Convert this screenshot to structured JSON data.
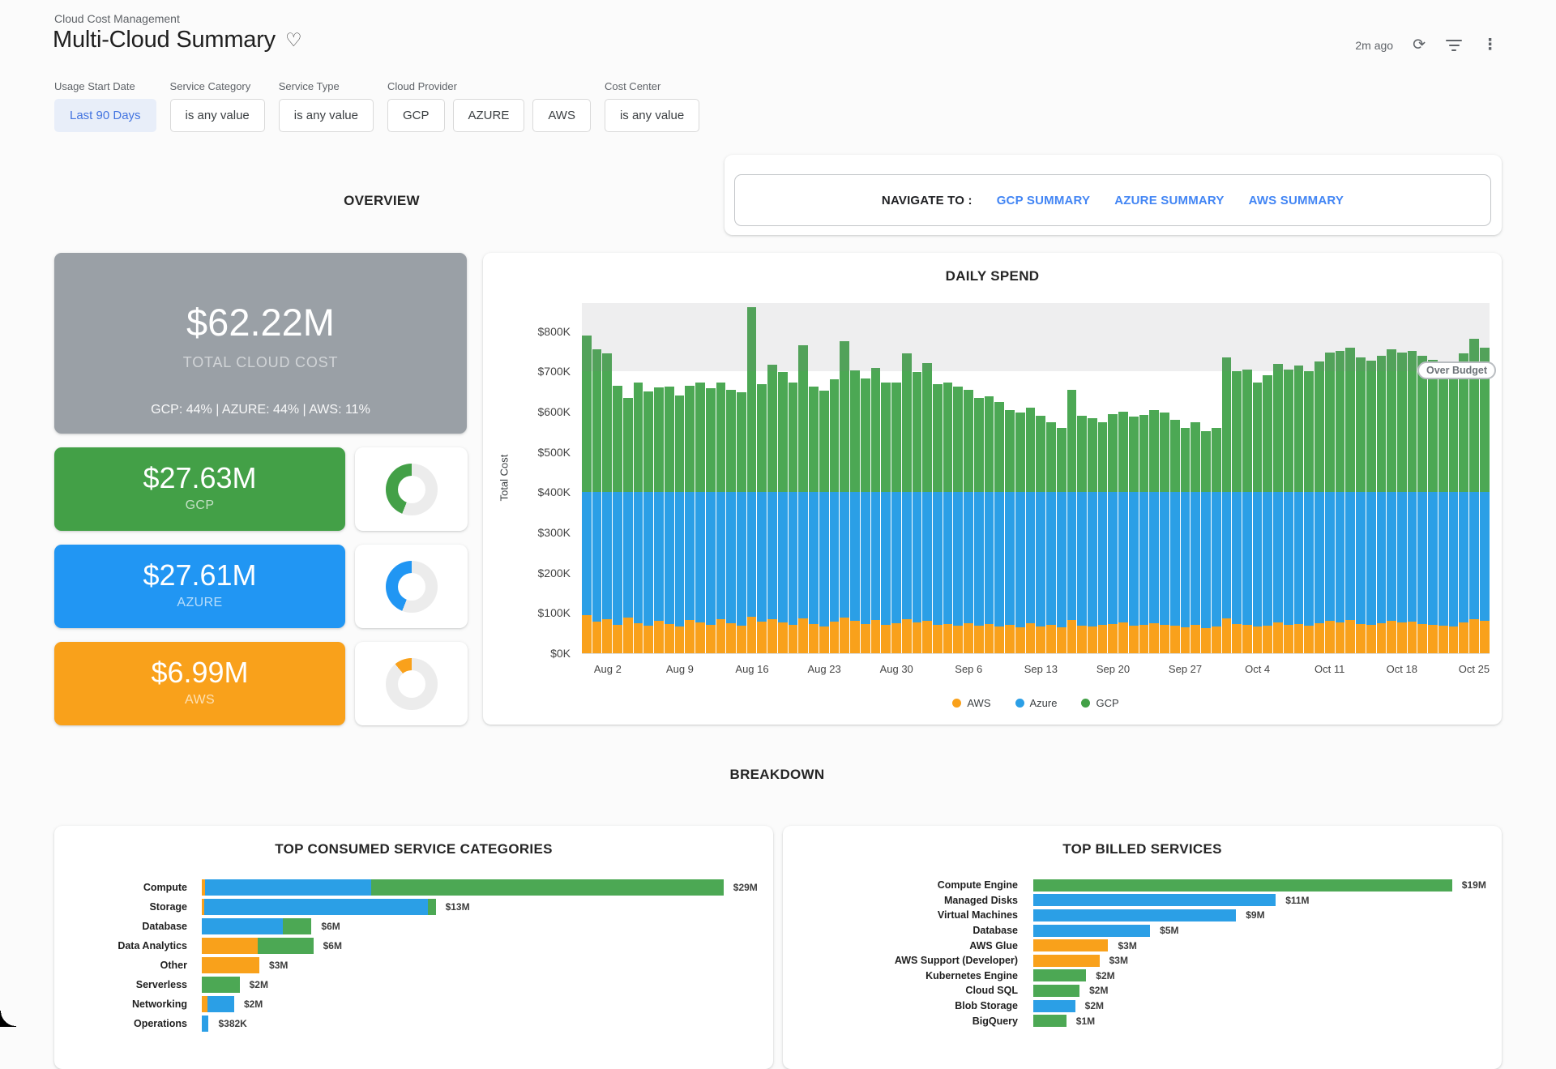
{
  "header": {
    "breadcrumb": "Cloud Cost Management",
    "title": "Multi-Cloud Summary",
    "updated": "2m ago"
  },
  "filters": [
    {
      "label": "Usage Start Date",
      "chips": [
        {
          "text": "Last 90 Days",
          "active": true
        }
      ]
    },
    {
      "label": "Service Category",
      "chips": [
        {
          "text": "is any value",
          "active": false
        }
      ]
    },
    {
      "label": "Service Type",
      "chips": [
        {
          "text": "is any value",
          "active": false
        }
      ]
    },
    {
      "label": "Cloud Provider",
      "chips": [
        {
          "text": "GCP",
          "active": false
        },
        {
          "text": "AZURE",
          "active": false
        },
        {
          "text": "AWS",
          "active": false
        }
      ]
    },
    {
      "label": "Cost Center",
      "chips": [
        {
          "text": "is any value",
          "active": false
        }
      ]
    }
  ],
  "sections": {
    "overview": "OVERVIEW",
    "breakdown": "BREAKDOWN"
  },
  "navigate": {
    "label": "NAVIGATE TO :",
    "links": [
      "GCP SUMMARY",
      "AZURE SUMMARY",
      "AWS SUMMARY"
    ]
  },
  "kpis": {
    "total": {
      "value": "$62.22M",
      "label": "TOTAL CLOUD COST",
      "split": "GCP: 44% | AZURE: 44% | AWS: 11%"
    },
    "providers": [
      {
        "value": "$27.63M",
        "label": "GCP",
        "pct": 44,
        "color_key": "gcp"
      },
      {
        "value": "$27.61M",
        "label": "AZURE",
        "pct": 44,
        "color_key": "azure"
      },
      {
        "value": "$6.99M",
        "label": "AWS",
        "pct": 11,
        "color_key": "aws"
      }
    ]
  },
  "colors": {
    "gcp": "#43a047",
    "azure": "#2196f3",
    "aws": "#f9a11b",
    "gcp_bar": "#4ca854",
    "azure_bar": "#2b9fe6",
    "aws_bar": "#f9a11b",
    "link": "#4285f4",
    "track": "#ececec",
    "gray_tile": "#9aa0a6"
  },
  "chart_data": [
    {
      "id": "daily_spend",
      "type": "bar",
      "stacked": true,
      "title": "DAILY SPEND",
      "ylabel": "Total Cost",
      "unit": "$K",
      "ylim": [
        0,
        870
      ],
      "grid": false,
      "ytick_values": [
        0,
        100,
        200,
        300,
        400,
        500,
        600,
        700,
        800
      ],
      "ytick_labels": [
        "$0K",
        "$100K",
        "$200K",
        "$300K",
        "$400K",
        "$500K",
        "$600K",
        "$700K",
        "$800K"
      ],
      "xticks": [
        {
          "label": "Aug 2",
          "i": 2
        },
        {
          "label": "Aug 9",
          "i": 9
        },
        {
          "label": "Aug 16",
          "i": 16
        },
        {
          "label": "Aug 23",
          "i": 23
        },
        {
          "label": "Aug 30",
          "i": 30
        },
        {
          "label": "Sep 6",
          "i": 37
        },
        {
          "label": "Sep 13",
          "i": 44
        },
        {
          "label": "Sep 20",
          "i": 51
        },
        {
          "label": "Sep 27",
          "i": 58
        },
        {
          "label": "Oct 4",
          "i": 65
        },
        {
          "label": "Oct 11",
          "i": 72
        },
        {
          "label": "Oct 18",
          "i": 79
        },
        {
          "label": "Oct 25",
          "i": 86
        }
      ],
      "legend": [
        "AWS",
        "Azure",
        "GCP"
      ],
      "legend_position": "bottom",
      "annotation": {
        "label": "Over Budget",
        "threshold": 700
      },
      "series": [
        {
          "name": "AWS",
          "color_key": "aws_bar",
          "values": [
            95,
            78,
            84,
            70,
            88,
            75,
            68,
            80,
            72,
            66,
            82,
            76,
            70,
            85,
            74,
            68,
            90,
            78,
            84,
            76,
            70,
            86,
            72,
            66,
            78,
            88,
            80,
            72,
            82,
            70,
            74,
            84,
            76,
            80,
            70,
            72,
            68,
            74,
            68,
            72,
            66,
            70,
            64,
            74,
            66,
            70,
            64,
            82,
            68,
            66,
            70,
            72,
            76,
            68,
            70,
            75,
            70,
            68,
            64,
            70,
            62,
            66,
            86,
            72,
            70,
            66,
            68,
            76,
            70,
            72,
            68,
            74,
            80,
            76,
            82,
            72,
            70,
            74,
            80,
            76,
            78,
            72,
            70,
            68,
            66,
            76,
            84,
            80
          ]
        },
        {
          "name": "Azure",
          "color_key": "azure_bar",
          "values": [
            305,
            322,
            316,
            330,
            312,
            325,
            332,
            320,
            328,
            334,
            318,
            324,
            330,
            315,
            326,
            332,
            310,
            322,
            316,
            324,
            330,
            314,
            328,
            334,
            322,
            312,
            320,
            328,
            318,
            330,
            326,
            316,
            324,
            320,
            330,
            328,
            332,
            326,
            332,
            328,
            334,
            330,
            336,
            326,
            334,
            330,
            336,
            318,
            332,
            334,
            330,
            328,
            324,
            332,
            330,
            325,
            330,
            332,
            336,
            330,
            338,
            334,
            314,
            328,
            330,
            334,
            332,
            324,
            330,
            328,
            332,
            326,
            320,
            324,
            318,
            328,
            330,
            326,
            320,
            324,
            322,
            328,
            330,
            332,
            334,
            324,
            316,
            320
          ]
        },
        {
          "name": "GCP",
          "color_key": "gcp_bar",
          "values": [
            390,
            355,
            345,
            265,
            235,
            272,
            250,
            260,
            262,
            240,
            265,
            272,
            258,
            273,
            255,
            248,
            460,
            268,
            318,
            298,
            272,
            365,
            262,
            252,
            280,
            375,
            303,
            283,
            308,
            272,
            272,
            345,
            298,
            322,
            268,
            272,
            262,
            255,
            235,
            238,
            225,
            205,
            198,
            210,
            190,
            175,
            160,
            255,
            190,
            185,
            175,
            195,
            200,
            188,
            192,
            205,
            198,
            180,
            160,
            175,
            152,
            160,
            335,
            300,
            305,
            272,
            290,
            320,
            305,
            315,
            300,
            325,
            348,
            352,
            360,
            335,
            328,
            340,
            355,
            348,
            352,
            340,
            330,
            318,
            300,
            345,
            382,
            360
          ]
        }
      ]
    },
    {
      "id": "service_categories",
      "type": "bar",
      "orientation": "horizontal",
      "stacked": true,
      "title": "TOP CONSUMED SERVICE CATEGORIES",
      "unit": "$M",
      "rows": [
        {
          "label": "Compute",
          "value_label": "$29M",
          "aws": 0.2,
          "azure": 9.2,
          "gcp": 19.6
        },
        {
          "label": "Storage",
          "value_label": "$13M",
          "aws": 0.15,
          "azure": 12.4,
          "gcp": 0.45
        },
        {
          "label": "Database",
          "value_label": "$6M",
          "aws": 0,
          "azure": 4.5,
          "gcp": 1.6
        },
        {
          "label": "Data Analytics",
          "value_label": "$6M",
          "aws": 3.1,
          "azure": 0,
          "gcp": 3.1
        },
        {
          "label": "Other",
          "value_label": "$3M",
          "aws": 3.2,
          "azure": 0,
          "gcp": 0
        },
        {
          "label": "Serverless",
          "value_label": "$2M",
          "aws": 0,
          "azure": 0,
          "gcp": 2.1
        },
        {
          "label": "Networking",
          "value_label": "$2M",
          "aws": 0.3,
          "azure": 1.5,
          "gcp": 0
        },
        {
          "label": "Operations",
          "value_label": "$382K",
          "aws": 0,
          "azure": 0.382,
          "gcp": 0
        }
      ]
    },
    {
      "id": "billed_services",
      "type": "bar",
      "orientation": "horizontal",
      "stacked": false,
      "title": "TOP BILLED SERVICES",
      "unit": "$M",
      "rows": [
        {
          "label": "Compute Engine",
          "value_label": "$19M",
          "provider": "gcp",
          "value": 19
        },
        {
          "label": "Managed Disks",
          "value_label": "$11M",
          "provider": "azure",
          "value": 11
        },
        {
          "label": "Virtual Machines",
          "value_label": "$9M",
          "provider": "azure",
          "value": 9.2
        },
        {
          "label": "Database",
          "value_label": "$5M",
          "provider": "azure",
          "value": 5.3
        },
        {
          "label": "AWS Glue",
          "value_label": "$3M",
          "provider": "aws",
          "value": 3.4
        },
        {
          "label": "AWS Support (Developer)",
          "value_label": "$3M",
          "provider": "aws",
          "value": 3.0
        },
        {
          "label": "Kubernetes Engine",
          "value_label": "$2M",
          "provider": "gcp",
          "value": 2.4
        },
        {
          "label": "Cloud SQL",
          "value_label": "$2M",
          "provider": "gcp",
          "value": 2.1
        },
        {
          "label": "Blob Storage",
          "value_label": "$2M",
          "provider": "azure",
          "value": 1.9
        },
        {
          "label": "BigQuery",
          "value_label": "$1M",
          "provider": "gcp",
          "value": 1.5
        }
      ]
    }
  ]
}
